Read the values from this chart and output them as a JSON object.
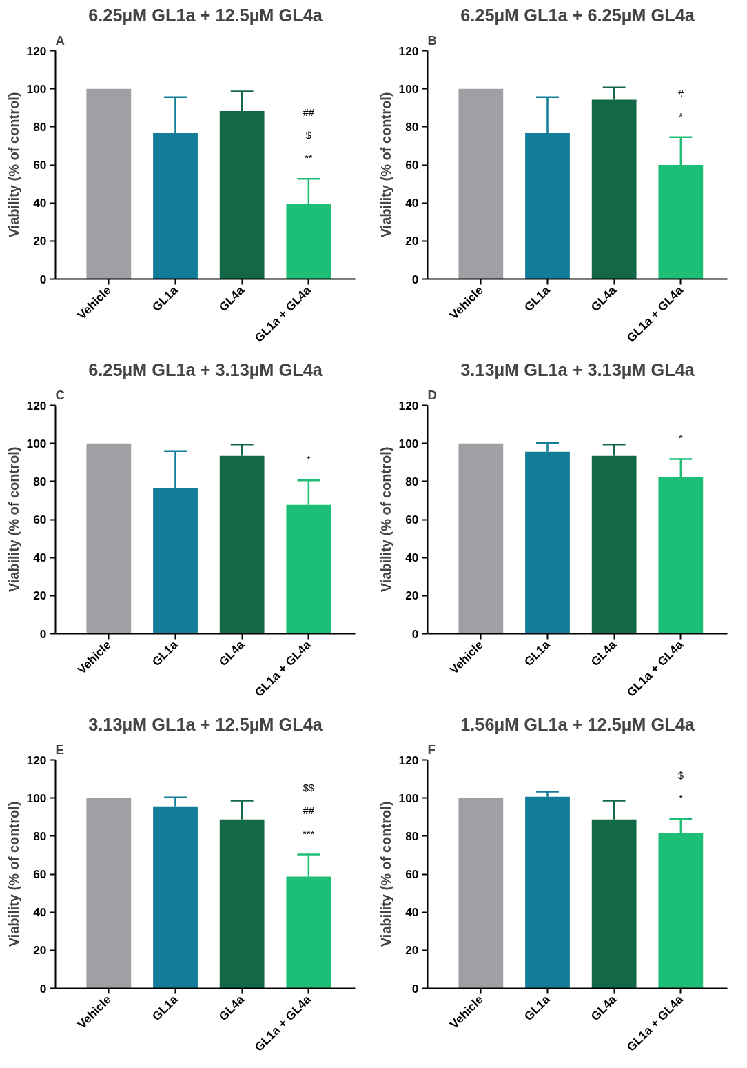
{
  "chart_data": [
    {
      "type": "bar",
      "title": "6.25µM GL1a + 12.5µM GL4a",
      "ylabel": "Viability (% of control)",
      "categories": [
        "Vehicle",
        "GL1a",
        "GL4a",
        "GL1a + GL4a"
      ],
      "colors": [
        "#a0a0a4",
        "#117d99",
        "#136846",
        "#1dbe75"
      ],
      "values": [
        100,
        76.7,
        88.3,
        39.4
      ],
      "errors": [
        null,
        [
          76.7,
          95.6
        ],
        [
          88.3,
          98.6
        ],
        [
          39.4,
          52.7
        ]
      ],
      "ylim": [
        0,
        120
      ],
      "yticks": [
        0,
        20,
        40,
        60,
        80,
        100,
        120
      ],
      "grid": false,
      "annotations": [
        "A",
        "**",
        "$",
        "##"
      ]
    },
    {
      "type": "bar",
      "title": "6.25µM GL1a + 6.25µM GL4a",
      "ylabel": "Viability (% of control)",
      "categories": [
        "Vehicle",
        "GL1a",
        "GL4a",
        "GL1a + GL4a"
      ],
      "colors": [
        "#a0a0a4",
        "#117d99",
        "#136846",
        "#1dbe75"
      ],
      "values": [
        100,
        76.7,
        94.3,
        60
      ],
      "errors": [
        null,
        [
          76.7,
          95.6
        ],
        [
          94.3,
          100.7
        ],
        [
          60,
          74.6
        ]
      ],
      "ylim": [
        0,
        120
      ],
      "yticks": [
        0,
        20,
        40,
        60,
        80,
        100,
        120
      ],
      "grid": false,
      "annotations": [
        "B",
        "*",
        "#"
      ]
    },
    {
      "type": "bar",
      "title": "6.25µM GL1a + 3.13µM GL4a",
      "ylabel": "Viability (% of control)",
      "categories": [
        "Vehicle",
        "GL1a",
        "GL4a",
        "GL1a + GL4a"
      ],
      "colors": [
        "#a0a0a4",
        "#117d99",
        "#136846",
        "#1dbe75"
      ],
      "values": [
        100,
        76.7,
        93.4,
        67.7
      ],
      "errors": [
        null,
        [
          76.7,
          96
        ],
        [
          93.4,
          99.4
        ],
        [
          67.7,
          80.6
        ]
      ],
      "ylim": [
        0,
        120
      ],
      "yticks": [
        0,
        20,
        40,
        60,
        80,
        100,
        120
      ],
      "grid": false,
      "annotations": [
        "C",
        "*"
      ]
    },
    {
      "type": "bar",
      "title": "3.13µM GL1a + 3.13µM GL4a",
      "ylabel": "Viability (% of control)",
      "categories": [
        "Vehicle",
        "GL1a",
        "GL4a",
        "GL1a + GL4a"
      ],
      "colors": [
        "#a0a0a4",
        "#117d99",
        "#136846",
        "#1dbe75"
      ],
      "values": [
        100,
        95.6,
        93.4,
        82.3
      ],
      "errors": [
        null,
        [
          95.6,
          100.3
        ],
        [
          93.4,
          99.4
        ],
        [
          82.3,
          91.7
        ]
      ],
      "ylim": [
        0,
        120
      ],
      "yticks": [
        0,
        20,
        40,
        60,
        80,
        100,
        120
      ],
      "grid": false,
      "annotations": [
        "D",
        "*"
      ]
    },
    {
      "type": "bar",
      "title": "3.13µM GL1a + 12.5µM GL4a",
      "ylabel": "Viability (% of control)",
      "categories": [
        "Vehicle",
        "GL1a",
        "GL4a",
        "GL1a + GL4a"
      ],
      "colors": [
        "#a0a0a4",
        "#117d99",
        "#136846",
        "#1dbe75"
      ],
      "values": [
        100,
        95.6,
        88.7,
        58.7
      ],
      "errors": [
        null,
        [
          95.6,
          100.3
        ],
        [
          88.7,
          98.6
        ],
        [
          58.7,
          70.3
        ]
      ],
      "ylim": [
        0,
        120
      ],
      "yticks": [
        0,
        20,
        40,
        60,
        80,
        100,
        120
      ],
      "grid": false,
      "annotations": [
        "E",
        "***",
        "##",
        "$$"
      ]
    },
    {
      "type": "bar",
      "title": "1.56µM GL1a + 12.5µM GL4a",
      "ylabel": "Viability (% of control)",
      "categories": [
        "Vehicle",
        "GL1a",
        "GL4a",
        "GL1a + GL4a"
      ],
      "colors": [
        "#a0a0a4",
        "#117d99",
        "#136846",
        "#1dbe75"
      ],
      "values": [
        100,
        100.7,
        88.7,
        81.4
      ],
      "errors": [
        null,
        [
          100.7,
          103.3
        ],
        [
          88.7,
          98.6
        ],
        [
          81.4,
          89.1
        ]
      ],
      "ylim": [
        0,
        120
      ],
      "yticks": [
        0,
        20,
        40,
        60,
        80,
        100,
        120
      ],
      "grid": false,
      "annotations": [
        "F",
        "*",
        "$"
      ]
    }
  ]
}
